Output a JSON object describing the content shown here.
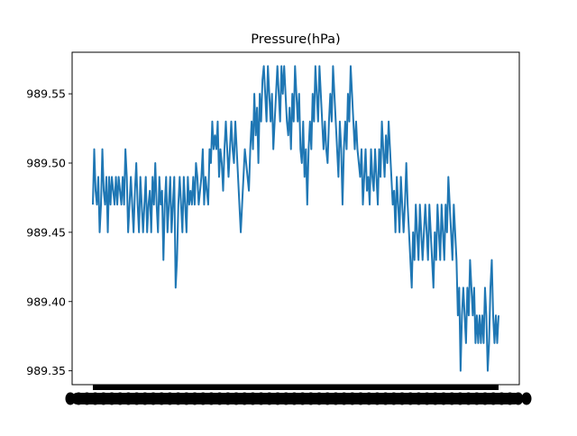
{
  "chart_data": {
    "type": "line",
    "title": "Pressure(hPa)",
    "xlabel": "",
    "ylabel": "",
    "ylim": [
      989.34,
      989.58
    ],
    "yticks": [
      989.35,
      989.4,
      989.45,
      989.5,
      989.55
    ],
    "ytick_labels": [
      "989.35",
      "989.40",
      "989.45",
      "989.50",
      "989.55"
    ],
    "grid": false,
    "legend": "none",
    "x_tick_labels_legible": false,
    "series": [
      {
        "color": "#1f77b4",
        "values": [
          989.47,
          989.51,
          989.48,
          989.47,
          989.49,
          989.45,
          989.47,
          989.51,
          989.48,
          989.47,
          989.49,
          989.45,
          989.49,
          989.47,
          989.49,
          989.48,
          989.47,
          989.49,
          989.47,
          989.49,
          989.48,
          989.47,
          989.49,
          989.47,
          989.51,
          989.49,
          989.45,
          989.47,
          989.49,
          989.47,
          989.45,
          989.48,
          989.5,
          989.47,
          989.45,
          989.49,
          989.47,
          989.45,
          989.47,
          989.49,
          989.45,
          989.47,
          989.48,
          989.45,
          989.49,
          989.47,
          989.5,
          989.47,
          989.45,
          989.49,
          989.47,
          989.48,
          989.43,
          989.47,
          989.49,
          989.45,
          989.47,
          989.49,
          989.45,
          989.47,
          989.49,
          989.41,
          989.43,
          989.47,
          989.49,
          989.47,
          989.45,
          989.49,
          989.47,
          989.45,
          989.49,
          989.47,
          989.48,
          989.47,
          989.49,
          989.47,
          989.5,
          989.49,
          989.47,
          989.48,
          989.49,
          989.51,
          989.47,
          989.49,
          989.48,
          989.47,
          989.51,
          989.5,
          989.53,
          989.51,
          989.52,
          989.51,
          989.53,
          989.49,
          989.51,
          989.5,
          989.48,
          989.51,
          989.53,
          989.51,
          989.49,
          989.51,
          989.53,
          989.51,
          989.5,
          989.53,
          989.51,
          989.49,
          989.47,
          989.45,
          989.47,
          989.49,
          989.51,
          989.5,
          989.49,
          989.48,
          989.51,
          989.53,
          989.51,
          989.55,
          989.52,
          989.54,
          989.5,
          989.55,
          989.53,
          989.56,
          989.57,
          989.55,
          989.53,
          989.57,
          989.55,
          989.53,
          989.55,
          989.51,
          989.53,
          989.55,
          989.57,
          989.55,
          989.53,
          989.57,
          989.55,
          989.57,
          989.55,
          989.53,
          989.52,
          989.54,
          989.51,
          989.55,
          989.53,
          989.57,
          989.55,
          989.53,
          989.55,
          989.51,
          989.5,
          989.53,
          989.49,
          989.51,
          989.47,
          989.51,
          989.53,
          989.51,
          989.55,
          989.53,
          989.57,
          989.55,
          989.53,
          989.57,
          989.55,
          989.53,
          989.51,
          989.53,
          989.51,
          989.5,
          989.53,
          989.55,
          989.53,
          989.57,
          989.55,
          989.53,
          989.51,
          989.49,
          989.53,
          989.51,
          989.47,
          989.51,
          989.53,
          989.51,
          989.55,
          989.53,
          989.57,
          989.55,
          989.53,
          989.51,
          989.53,
          989.51,
          989.5,
          989.49,
          989.51,
          989.47,
          989.49,
          989.51,
          989.48,
          989.49,
          989.47,
          989.51,
          989.49,
          989.48,
          989.51,
          989.49,
          989.47,
          989.51,
          989.49,
          989.53,
          989.51,
          989.49,
          989.52,
          989.5,
          989.53,
          989.51,
          989.49,
          989.47,
          989.48,
          989.45,
          989.49,
          989.47,
          989.45,
          989.49,
          989.47,
          989.45,
          989.47,
          989.5,
          989.47,
          989.45,
          989.43,
          989.41,
          989.45,
          989.43,
          989.47,
          989.45,
          989.43,
          989.47,
          989.45,
          989.43,
          989.45,
          989.47,
          989.45,
          989.43,
          989.47,
          989.45,
          989.43,
          989.41,
          989.45,
          989.43,
          989.47,
          989.45,
          989.43,
          989.47,
          989.45,
          989.43,
          989.47,
          989.45,
          989.49,
          989.47,
          989.45,
          989.43,
          989.47,
          989.45,
          989.43,
          989.39,
          989.41,
          989.35,
          989.39,
          989.41,
          989.39,
          989.37,
          989.41,
          989.39,
          989.43,
          989.41,
          989.39,
          989.41,
          989.37,
          989.39,
          989.37,
          989.39,
          989.37,
          989.39,
          989.37,
          989.41,
          989.39,
          989.35,
          989.37,
          989.41,
          989.43,
          989.39,
          989.37,
          989.39,
          989.37,
          989.39
        ]
      }
    ]
  }
}
